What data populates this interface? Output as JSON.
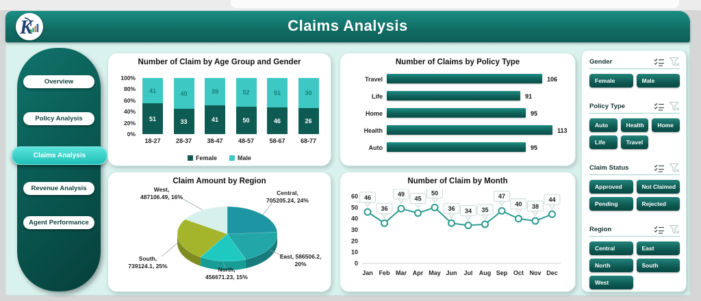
{
  "header": {
    "title": "Claims Analysis"
  },
  "sidebar": {
    "items": [
      {
        "label": "Overview",
        "active": false
      },
      {
        "label": "Policy Analysis",
        "active": false
      },
      {
        "label": "Claims Analysis",
        "active": true
      },
      {
        "label": "Revenue Analysis",
        "active": false
      },
      {
        "label": "Agent Performance",
        "active": false
      }
    ]
  },
  "chart_data": [
    {
      "type": "bar",
      "variant": "stacked-100pct-column",
      "title": "Number of Claim by Age Group and Gender",
      "categories": [
        "18-27",
        "28-37",
        "38-47",
        "48-57",
        "58-67",
        "68-77"
      ],
      "series": [
        {
          "name": "Female",
          "color": "#0e5b54",
          "label_color": "#ffffff",
          "values": [
            51,
            33,
            41,
            50,
            46,
            26
          ]
        },
        {
          "name": "Male",
          "color": "#3dc8c3",
          "label_color": "#17807c",
          "values": [
            41,
            40,
            39,
            52,
            51,
            30
          ]
        }
      ],
      "y_ticks": [
        "100%",
        "80%",
        "60%",
        "40%",
        "20%",
        "0%"
      ],
      "legend_position": "bottom"
    },
    {
      "type": "bar",
      "variant": "horizontal",
      "title": "Number of Claims by Policy Type",
      "categories": [
        "Travel",
        "Life",
        "Home",
        "Health",
        "Auto"
      ],
      "values": [
        106,
        91,
        95,
        113,
        95
      ],
      "xlim": [
        0,
        120
      ]
    },
    {
      "type": "pie",
      "variant": "3d",
      "title": "Claim Amount by Region",
      "slices": [
        {
          "label": "Central",
          "value": 705205.24,
          "pct": 24,
          "color": "#1d95a2",
          "side_color": "#14707c",
          "label_lines": [
            "Central,",
            "705205.24, 24%"
          ]
        },
        {
          "label": "East",
          "value": 586506.2,
          "pct": 20,
          "color": "#23a6a8",
          "side_color": "#177a7c",
          "label_lines": [
            "East, 586506.2,",
            "20%"
          ]
        },
        {
          "label": "North",
          "value": 456671.23,
          "pct": 15,
          "color": "#20c9c0",
          "side_color": "#179d96",
          "label_lines": [
            "North,",
            "456671.23, 15%"
          ]
        },
        {
          "label": "South",
          "value": 739124.1,
          "pct": 25,
          "color": "#a4b52c",
          "side_color": "#7e8c20",
          "label_lines": [
            "South,",
            "739124.1, 25%"
          ]
        },
        {
          "label": "West",
          "value": 487106.49,
          "pct": 16,
          "color": "#d8f0ec",
          "side_color": "#aed4cf",
          "label_lines": [
            "West,",
            "487106.49, 16%"
          ]
        }
      ]
    },
    {
      "type": "line",
      "title": "Number of Claim by Month",
      "x": [
        "Jan",
        "Feb",
        "Mar",
        "Apr",
        "May",
        "Jun",
        "Jul",
        "Aug",
        "Sep",
        "Oct",
        "Nov",
        "Dec"
      ],
      "values": [
        46,
        36,
        49,
        45,
        50,
        36,
        34,
        35,
        47,
        40,
        38,
        44
      ],
      "ylim": [
        0,
        60
      ],
      "y_ticks": [
        60,
        50,
        40,
        30,
        20,
        10,
        0
      ],
      "line_color": "#2a9a90",
      "data_labels": true
    }
  ],
  "filters": {
    "sections": [
      {
        "title": "Gender",
        "columns": 2,
        "options": [
          "Female",
          "Male"
        ]
      },
      {
        "title": "Policy Type",
        "columns": 3,
        "options": [
          "Auto",
          "Health",
          "Home",
          "Life",
          "Travel"
        ]
      },
      {
        "title": "Claim Status",
        "columns": 2,
        "options": [
          "Approved",
          "Not Claimed",
          "Pending",
          "Rejected"
        ]
      },
      {
        "title": "Region",
        "columns": 2,
        "options": [
          "Central",
          "East",
          "North",
          "South",
          "West"
        ]
      }
    ]
  },
  "colors": {
    "header_teal": "#14776f",
    "accent_cyan": "#35d4cc",
    "dashboard_bg": "#d9f2ee",
    "button_teal_dark": "#0c554f",
    "button_teal_light": "#1c837a"
  }
}
